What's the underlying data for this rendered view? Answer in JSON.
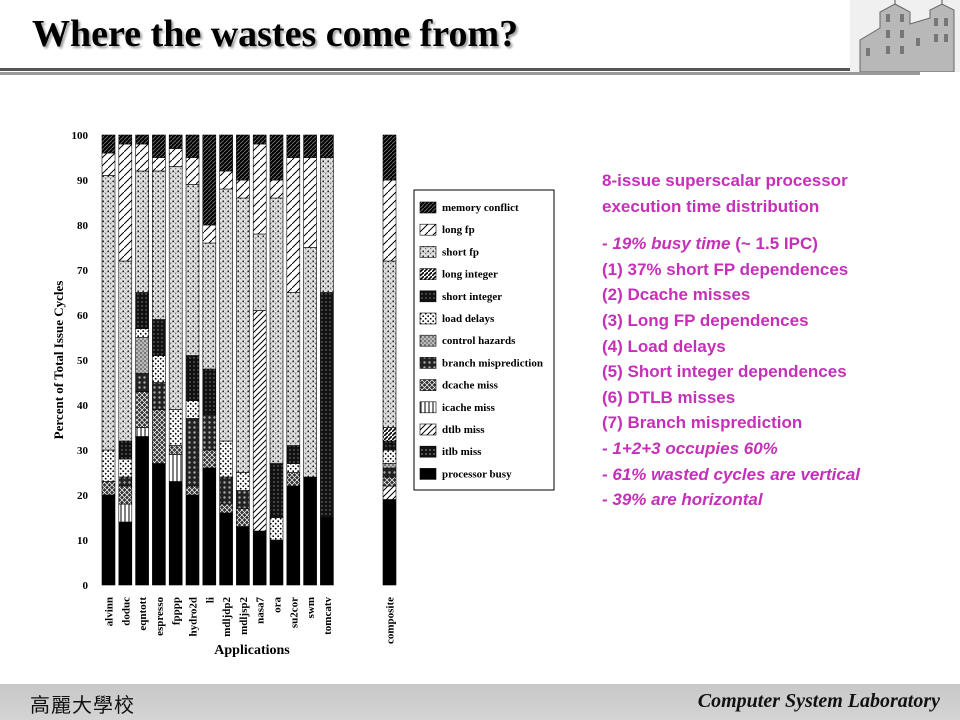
{
  "slide": {
    "title": "Where the wastes come from?",
    "footer_left": "高麗大學校",
    "footer_right": "Computer System Laboratory"
  },
  "description": {
    "heading_line1": "8-issue superscalar processor",
    "heading_line2": "execution time distribution",
    "busy_prefix": "- 19% busy time",
    "busy_suffix": " (~ 1.5 IPC)",
    "items": [
      "(1) 37% short FP dependences",
      "(2) Dcache misses",
      "(3) Long FP dependences",
      "(4) Load delays",
      "(5) Short integer dependences",
      "(6) DTLB misses",
      "(7) Branch misprediction"
    ],
    "notes": [
      "- 1+2+3 occupies 60%",
      "- 61% wasted cycles are vertical",
      "- 39% are horizontal"
    ],
    "color": "#c530b8"
  },
  "chart_data": {
    "type": "bar",
    "stacked": true,
    "ylabel": "Percent of Total Issue Cycles",
    "xlabel": "Applications",
    "ylim": [
      0,
      100
    ],
    "yticks": [
      0,
      10,
      20,
      30,
      40,
      50,
      60,
      70,
      80,
      90,
      100
    ],
    "categories": [
      "alvinn",
      "doduc",
      "eqntott",
      "espresso",
      "fpppp",
      "hydro2d",
      "li",
      "mdljdp2",
      "mdljsp2",
      "nasa7",
      "ora",
      "su2cor",
      "swm",
      "tomcatv",
      "composite"
    ],
    "legend_order_top_to_bottom": [
      "memory conflict",
      "long fp",
      "short fp",
      "long integer",
      "short integer",
      "load delays",
      "control hazards",
      "branch misprediction",
      "dcache miss",
      "icache miss",
      "dtlb miss",
      "itlb miss",
      "processor busy"
    ],
    "legend_placement": "right",
    "series": [
      {
        "name": "processor busy",
        "values": [
          20,
          14,
          33,
          27,
          23,
          20,
          26,
          16,
          13,
          12,
          10,
          22,
          24,
          15,
          19
        ]
      },
      {
        "name": "itlb miss",
        "values": [
          0,
          0,
          0,
          0,
          0,
          0,
          0,
          0,
          0,
          0,
          0,
          0,
          0,
          0,
          0
        ]
      },
      {
        "name": "dtlb miss",
        "values": [
          0,
          0,
          0,
          0,
          0,
          0,
          0,
          0,
          0,
          49,
          0,
          0,
          0,
          0,
          3
        ]
      },
      {
        "name": "icache miss",
        "values": [
          0,
          4,
          2,
          0,
          6,
          0,
          0,
          0,
          0,
          0,
          0,
          0,
          0,
          0,
          0
        ]
      },
      {
        "name": "dcache miss",
        "values": [
          3,
          4,
          8,
          12,
          2,
          2,
          4,
          2,
          4,
          0,
          0,
          3,
          0,
          0,
          2
        ]
      },
      {
        "name": "branch misprediction",
        "values": [
          0,
          2,
          4,
          6,
          0,
          15,
          8,
          6,
          4,
          0,
          0,
          0,
          0,
          0,
          2
        ]
      },
      {
        "name": "control hazards",
        "values": [
          0,
          0,
          8,
          0,
          0,
          0,
          0,
          0,
          0,
          0,
          0,
          0,
          0,
          0,
          1
        ]
      },
      {
        "name": "load delays",
        "values": [
          7,
          4,
          2,
          6,
          8,
          4,
          0,
          8,
          4,
          0,
          5,
          2,
          0,
          0,
          3
        ]
      },
      {
        "name": "short integer",
        "values": [
          0,
          4,
          8,
          8,
          0,
          10,
          10,
          0,
          0,
          0,
          12,
          4,
          0,
          50,
          2
        ]
      },
      {
        "name": "long integer",
        "values": [
          0,
          0,
          0,
          0,
          0,
          0,
          0,
          0,
          0,
          0,
          0,
          0,
          0,
          0,
          3
        ]
      },
      {
        "name": "short fp",
        "values": [
          61,
          40,
          27,
          33,
          54,
          38,
          28,
          56,
          61,
          17,
          59,
          34,
          51,
          30,
          37
        ]
      },
      {
        "name": "long fp",
        "values": [
          5,
          26,
          6,
          3,
          4,
          6,
          4,
          4,
          4,
          20,
          4,
          30,
          20,
          0,
          18
        ]
      },
      {
        "name": "memory conflict",
        "values": [
          4,
          2,
          2,
          5,
          3,
          5,
          20,
          8,
          10,
          2,
          10,
          5,
          5,
          5,
          10
        ]
      }
    ]
  }
}
